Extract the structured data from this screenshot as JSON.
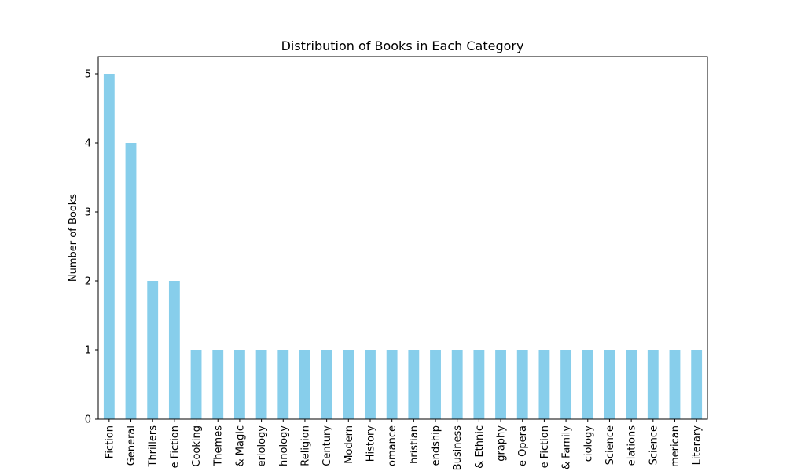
{
  "chart_data": {
    "type": "bar",
    "title": "Distribution of Books in Each Category",
    "xlabel": "",
    "ylabel": "Number of Books",
    "ylim": [
      0,
      5.25
    ],
    "yticks": [
      0,
      1,
      2,
      3,
      4,
      5
    ],
    "grid": false,
    "bar_color": "#87CEEB",
    "categories": [
      "Fiction",
      "General",
      "Thrillers",
      "e Fiction",
      "Cooking",
      "Themes",
      "& Magic",
      "eriology",
      "hnology",
      "Religion",
      "Century",
      "Modern",
      "History",
      "omance",
      "hristian",
      "endship",
      "Business",
      "& Ethnic",
      "graphy",
      "e Opera",
      "e Fiction",
      "& Family",
      "ciology",
      "Science",
      "elations",
      "Science",
      "merican",
      "Literary"
    ],
    "values": [
      5,
      4,
      2,
      2,
      1,
      1,
      1,
      1,
      1,
      1,
      1,
      1,
      1,
      1,
      1,
      1,
      1,
      1,
      1,
      1,
      1,
      1,
      1,
      1,
      1,
      1,
      1,
      1
    ]
  }
}
